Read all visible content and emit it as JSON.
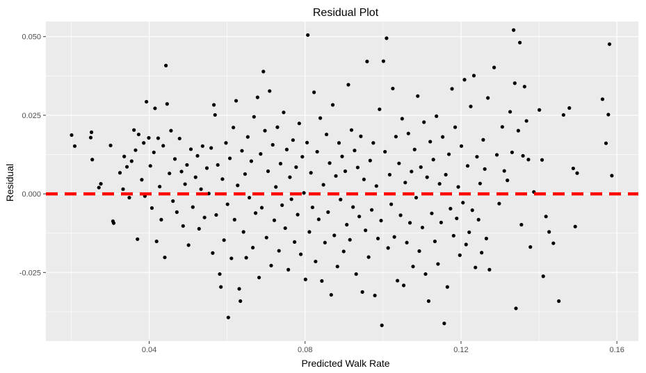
{
  "chart_data": {
    "type": "scatter",
    "title": "Residual Plot",
    "xlabel": "Predicted Walk Rate",
    "ylabel": "Residual",
    "xlim": [
      0.0135,
      0.1655
    ],
    "ylim": [
      -0.0468,
      0.0548
    ],
    "x_ticks": [
      {
        "value": 0.04,
        "label": "0.04"
      },
      {
        "value": 0.08,
        "label": "0.08"
      },
      {
        "value": 0.12,
        "label": "0.12"
      },
      {
        "value": 0.16,
        "label": "0.16"
      }
    ],
    "y_ticks": [
      {
        "value": -0.025,
        "label": "-0.025"
      },
      {
        "value": 0.0,
        "label": "0.000"
      },
      {
        "value": 0.025,
        "label": "0.025"
      },
      {
        "value": 0.05,
        "label": "0.050"
      }
    ],
    "grid": true,
    "reference_line": {
      "y": 0,
      "style": "dashed",
      "color": "#ff0000"
    },
    "colors": {
      "panel": "#ebebeb",
      "grid": "#ffffff",
      "points": "#000000"
    },
    "points": [
      {
        "x": 0.0201,
        "y": 0.0187
      },
      {
        "x": 0.0209,
        "y": 0.0152
      },
      {
        "x": 0.0252,
        "y": 0.0196
      },
      {
        "x": 0.025,
        "y": 0.0179
      },
      {
        "x": 0.0254,
        "y": 0.0109
      },
      {
        "x": 0.0271,
        "y": 0.002
      },
      {
        "x": 0.0276,
        "y": 0.0032
      },
      {
        "x": 0.0301,
        "y": 0.0154
      },
      {
        "x": 0.0307,
        "y": -0.0087
      },
      {
        "x": 0.0309,
        "y": -0.0093
      },
      {
        "x": 0.0325,
        "y": 0.0067
      },
      {
        "x": 0.0333,
        "y": 0.0015
      },
      {
        "x": 0.0336,
        "y": 0.0119
      },
      {
        "x": 0.0343,
        "y": 0.0086
      },
      {
        "x": 0.0349,
        "y": -0.0012
      },
      {
        "x": 0.0355,
        "y": 0.0104
      },
      {
        "x": 0.0361,
        "y": 0.0203
      },
      {
        "x": 0.0365,
        "y": 0.0139
      },
      {
        "x": 0.037,
        "y": -0.0144
      },
      {
        "x": 0.0373,
        "y": 0.0189
      },
      {
        "x": 0.0381,
        "y": 0.0045
      },
      {
        "x": 0.0386,
        "y": 0.0162
      },
      {
        "x": 0.0389,
        "y": -0.0007
      },
      {
        "x": 0.0393,
        "y": 0.0293
      },
      {
        "x": 0.0399,
        "y": 0.0178
      },
      {
        "x": 0.0403,
        "y": 0.0089
      },
      {
        "x": 0.0407,
        "y": -0.0045
      },
      {
        "x": 0.0412,
        "y": 0.0132
      },
      {
        "x": 0.0415,
        "y": 0.0272
      },
      {
        "x": 0.0419,
        "y": -0.0151
      },
      {
        "x": 0.0423,
        "y": 0.0177
      },
      {
        "x": 0.0427,
        "y": 0.0023
      },
      {
        "x": 0.0431,
        "y": -0.0082
      },
      {
        "x": 0.0436,
        "y": 0.0153
      },
      {
        "x": 0.044,
        "y": -0.0202
      },
      {
        "x": 0.0443,
        "y": 0.0408
      },
      {
        "x": 0.0446,
        "y": 0.0286
      },
      {
        "x": 0.0452,
        "y": 0.0065
      },
      {
        "x": 0.0456,
        "y": 0.0201
      },
      {
        "x": 0.0461,
        "y": -0.0023
      },
      {
        "x": 0.0466,
        "y": 0.0111
      },
      {
        "x": 0.0471,
        "y": -0.0058
      },
      {
        "x": 0.0478,
        "y": 0.0176
      },
      {
        "x": 0.0483,
        "y": 0.0071
      },
      {
        "x": 0.0487,
        "y": -0.0102
      },
      {
        "x": 0.0492,
        "y": 0.0031
      },
      {
        "x": 0.0497,
        "y": 0.0092
      },
      {
        "x": 0.0501,
        "y": -0.0163
      },
      {
        "x": 0.0507,
        "y": 0.0142
      },
      {
        "x": 0.0512,
        "y": -0.0042
      },
      {
        "x": 0.0519,
        "y": 0.0053
      },
      {
        "x": 0.0524,
        "y": 0.0121
      },
      {
        "x": 0.0528,
        "y": -0.0111
      },
      {
        "x": 0.0533,
        "y": 0.0015
      },
      {
        "x": 0.0537,
        "y": 0.0152
      },
      {
        "x": 0.0542,
        "y": -0.0075
      },
      {
        "x": 0.0548,
        "y": 0.0082
      },
      {
        "x": 0.0553,
        "y": 0.0001
      },
      {
        "x": 0.0559,
        "y": 0.0146
      },
      {
        "x": 0.0563,
        "y": -0.0188
      },
      {
        "x": 0.0566,
        "y": 0.0283
      },
      {
        "x": 0.0569,
        "y": 0.0251
      },
      {
        "x": 0.0572,
        "y": -0.0067
      },
      {
        "x": 0.0576,
        "y": 0.0092
      },
      {
        "x": 0.0581,
        "y": -0.0255
      },
      {
        "x": 0.0584,
        "y": -0.0296
      },
      {
        "x": 0.0588,
        "y": 0.0047
      },
      {
        "x": 0.0592,
        "y": -0.0147
      },
      {
        "x": 0.0597,
        "y": 0.0162
      },
      {
        "x": 0.0601,
        "y": -0.0033
      },
      {
        "x": 0.0603,
        "y": -0.0393
      },
      {
        "x": 0.0607,
        "y": 0.0113
      },
      {
        "x": 0.0611,
        "y": -0.0205
      },
      {
        "x": 0.0616,
        "y": 0.0211
      },
      {
        "x": 0.0619,
        "y": -0.0082
      },
      {
        "x": 0.0623,
        "y": 0.0296
      },
      {
        "x": 0.0627,
        "y": 0.0027
      },
      {
        "x": 0.0631,
        "y": -0.0302
      },
      {
        "x": 0.0634,
        "y": -0.0341
      },
      {
        "x": 0.0638,
        "y": 0.0137
      },
      {
        "x": 0.0642,
        "y": -0.0121
      },
      {
        "x": 0.0646,
        "y": 0.0063
      },
      {
        "x": 0.0649,
        "y": -0.0203
      },
      {
        "x": 0.0653,
        "y": 0.0181
      },
      {
        "x": 0.0657,
        "y": -0.0012
      },
      {
        "x": 0.0662,
        "y": 0.0104
      },
      {
        "x": 0.0666,
        "y": -0.0171
      },
      {
        "x": 0.0669,
        "y": 0.0245
      },
      {
        "x": 0.0673,
        "y": -0.0061
      },
      {
        "x": 0.0678,
        "y": 0.0307
      },
      {
        "x": 0.0682,
        "y": -0.0266
      },
      {
        "x": 0.0686,
        "y": 0.0127
      },
      {
        "x": 0.0689,
        "y": -0.0044
      },
      {
        "x": 0.0693,
        "y": 0.0389
      },
      {
        "x": 0.0697,
        "y": 0.0201
      },
      {
        "x": 0.0701,
        "y": -0.0139
      },
      {
        "x": 0.0705,
        "y": 0.0072
      },
      {
        "x": 0.0709,
        "y": 0.0327
      },
      {
        "x": 0.0713,
        "y": -0.0228
      },
      {
        "x": 0.0717,
        "y": 0.0156
      },
      {
        "x": 0.0721,
        "y": -0.0084
      },
      {
        "x": 0.0725,
        "y": 0.0022
      },
      {
        "x": 0.0729,
        "y": 0.0212
      },
      {
        "x": 0.0733,
        "y": -0.0181
      },
      {
        "x": 0.0737,
        "y": 0.0096
      },
      {
        "x": 0.0741,
        "y": -0.0036
      },
      {
        "x": 0.0745,
        "y": 0.0259
      },
      {
        "x": 0.0749,
        "y": -0.0109
      },
      {
        "x": 0.0753,
        "y": 0.0141
      },
      {
        "x": 0.0757,
        "y": -0.0241
      },
      {
        "x": 0.0761,
        "y": 0.0053
      },
      {
        "x": 0.0765,
        "y": -0.0017
      },
      {
        "x": 0.0769,
        "y": 0.0171
      },
      {
        "x": 0.0773,
        "y": -0.0153
      },
      {
        "x": 0.0777,
        "y": 0.0085
      },
      {
        "x": 0.0781,
        "y": -0.0066
      },
      {
        "x": 0.0785,
        "y": 0.0224
      },
      {
        "x": 0.0789,
        "y": -0.0192
      },
      {
        "x": 0.0793,
        "y": 0.0118
      },
      {
        "x": 0.0797,
        "y": 0.0003
      },
      {
        "x": 0.0801,
        "y": -0.0272
      },
      {
        "x": 0.0805,
        "y": 0.0163
      },
      {
        "x": 0.0807,
        "y": 0.0505
      },
      {
        "x": 0.0811,
        "y": -0.0121
      },
      {
        "x": 0.0815,
        "y": 0.0067
      },
      {
        "x": 0.0819,
        "y": -0.0043
      },
      {
        "x": 0.0823,
        "y": 0.0323
      },
      {
        "x": 0.0827,
        "y": -0.0215
      },
      {
        "x": 0.0831,
        "y": 0.0134
      },
      {
        "x": 0.0835,
        "y": -0.0081
      },
      {
        "x": 0.0839,
        "y": 0.0241
      },
      {
        "x": 0.0843,
        "y": -0.0277
      },
      {
        "x": 0.0847,
        "y": 0.0029
      },
      {
        "x": 0.0851,
        "y": -0.0155
      },
      {
        "x": 0.0855,
        "y": 0.0189
      },
      {
        "x": 0.0859,
        "y": -0.0058
      },
      {
        "x": 0.0863,
        "y": 0.0098
      },
      {
        "x": 0.0867,
        "y": -0.0321
      },
      {
        "x": 0.0871,
        "y": 0.0283
      },
      {
        "x": 0.0875,
        "y": -0.0132
      },
      {
        "x": 0.0879,
        "y": 0.0057
      },
      {
        "x": 0.0883,
        "y": -0.0231
      },
      {
        "x": 0.0887,
        "y": 0.0162
      },
      {
        "x": 0.0891,
        "y": -0.0018
      },
      {
        "x": 0.0895,
        "y": 0.0119
      },
      {
        "x": 0.0899,
        "y": -0.0183
      },
      {
        "x": 0.0903,
        "y": 0.0072
      },
      {
        "x": 0.0907,
        "y": -0.0098
      },
      {
        "x": 0.0911,
        "y": 0.0347
      },
      {
        "x": 0.0915,
        "y": -0.0146
      },
      {
        "x": 0.0919,
        "y": 0.0203
      },
      {
        "x": 0.0923,
        "y": -0.0042
      },
      {
        "x": 0.0927,
        "y": 0.0138
      },
      {
        "x": 0.0931,
        "y": -0.0255
      },
      {
        "x": 0.0935,
        "y": 0.0084
      },
      {
        "x": 0.0939,
        "y": -0.0072
      },
      {
        "x": 0.0943,
        "y": 0.0183
      },
      {
        "x": 0.0947,
        "y": -0.0312
      },
      {
        "x": 0.0951,
        "y": 0.0046
      },
      {
        "x": 0.0955,
        "y": -0.0116
      },
      {
        "x": 0.0959,
        "y": 0.0421
      },
      {
        "x": 0.0963,
        "y": -0.0201
      },
      {
        "x": 0.0967,
        "y": 0.0106
      },
      {
        "x": 0.0971,
        "y": -0.0051
      },
      {
        "x": 0.0975,
        "y": 0.0162
      },
      {
        "x": 0.0979,
        "y": -0.0323
      },
      {
        "x": 0.0983,
        "y": 0.0025
      },
      {
        "x": 0.0987,
        "y": -0.0142
      },
      {
        "x": 0.0991,
        "y": 0.0269
      },
      {
        "x": 0.0995,
        "y": -0.0085
      },
      {
        "x": 0.0997,
        "y": -0.0418
      },
      {
        "x": 0.1001,
        "y": 0.0422
      },
      {
        "x": 0.1005,
        "y": 0.0134
      },
      {
        "x": 0.1009,
        "y": 0.0495
      },
      {
        "x": 0.1013,
        "y": -0.0172
      },
      {
        "x": 0.1017,
        "y": 0.0061
      },
      {
        "x": 0.1021,
        "y": -0.0033
      },
      {
        "x": 0.1025,
        "y": 0.0335
      },
      {
        "x": 0.1029,
        "y": -0.0137
      },
      {
        "x": 0.1033,
        "y": 0.0182
      },
      {
        "x": 0.1037,
        "y": -0.0276
      },
      {
        "x": 0.1041,
        "y": 0.0097
      },
      {
        "x": 0.1045,
        "y": -0.0068
      },
      {
        "x": 0.1049,
        "y": 0.0239
      },
      {
        "x": 0.1053,
        "y": -0.0291
      },
      {
        "x": 0.1057,
        "y": 0.0036
      },
      {
        "x": 0.1061,
        "y": -0.0155
      },
      {
        "x": 0.1065,
        "y": 0.0192
      },
      {
        "x": 0.1069,
        "y": -0.0092
      },
      {
        "x": 0.1073,
        "y": 0.0071
      },
      {
        "x": 0.1077,
        "y": -0.0231
      },
      {
        "x": 0.1081,
        "y": 0.0141
      },
      {
        "x": 0.1085,
        "y": -0.0012
      },
      {
        "x": 0.1089,
        "y": 0.0311
      },
      {
        "x": 0.1093,
        "y": -0.0182
      },
      {
        "x": 0.1097,
        "y": 0.0085
      },
      {
        "x": 0.1101,
        "y": -0.0107
      },
      {
        "x": 0.1105,
        "y": 0.0228
      },
      {
        "x": 0.1109,
        "y": -0.0255
      },
      {
        "x": 0.1113,
        "y": 0.0053
      },
      {
        "x": 0.1117,
        "y": -0.0341
      },
      {
        "x": 0.1121,
        "y": 0.0166
      },
      {
        "x": 0.1125,
        "y": -0.0062
      },
      {
        "x": 0.1129,
        "y": 0.0109
      },
      {
        "x": 0.1133,
        "y": -0.0151
      },
      {
        "x": 0.1137,
        "y": 0.0247
      },
      {
        "x": 0.1141,
        "y": -0.0223
      },
      {
        "x": 0.1145,
        "y": 0.0032
      },
      {
        "x": 0.1149,
        "y": -0.0091
      },
      {
        "x": 0.1153,
        "y": 0.0181
      },
      {
        "x": 0.1157,
        "y": -0.0412
      },
      {
        "x": 0.1161,
        "y": 0.0061
      },
      {
        "x": 0.1165,
        "y": -0.0296
      },
      {
        "x": 0.1169,
        "y": 0.0126
      },
      {
        "x": 0.1173,
        "y": -0.0047
      },
      {
        "x": 0.1177,
        "y": 0.0334
      },
      {
        "x": 0.1181,
        "y": -0.0133
      },
      {
        "x": 0.1185,
        "y": 0.0212
      },
      {
        "x": 0.1189,
        "y": -0.0078
      },
      {
        "x": 0.1193,
        "y": 0.0022
      },
      {
        "x": 0.1197,
        "y": -0.0195
      },
      {
        "x": 0.1201,
        "y": 0.0152
      },
      {
        "x": 0.1205,
        "y": -0.0028
      },
      {
        "x": 0.1209,
        "y": 0.0363
      },
      {
        "x": 0.1213,
        "y": -0.0161
      },
      {
        "x": 0.1217,
        "y": 0.0089
      },
      {
        "x": 0.1221,
        "y": -0.0122
      },
      {
        "x": 0.1225,
        "y": 0.0278
      },
      {
        "x": 0.1229,
        "y": -0.0052
      },
      {
        "x": 0.1233,
        "y": 0.0376
      },
      {
        "x": 0.1237,
        "y": -0.0234
      },
      {
        "x": 0.1241,
        "y": 0.0118
      },
      {
        "x": 0.1245,
        "y": -0.0082
      },
      {
        "x": 0.1249,
        "y": 0.0033
      },
      {
        "x": 0.1253,
        "y": -0.0187
      },
      {
        "x": 0.1257,
        "y": 0.0172
      },
      {
        "x": 0.1261,
        "y": 0.0079
      },
      {
        "x": 0.1265,
        "y": -0.0142
      },
      {
        "x": 0.1269,
        "y": 0.0305
      },
      {
        "x": 0.1273,
        "y": -0.0241
      },
      {
        "x": 0.1285,
        "y": 0.0402
      },
      {
        "x": 0.1292,
        "y": 0.0124
      },
      {
        "x": 0.1298,
        "y": -0.0031
      },
      {
        "x": 0.1306,
        "y": 0.0213
      },
      {
        "x": 0.1311,
        "y": 0.0073
      },
      {
        "x": 0.1319,
        "y": 0.0043
      },
      {
        "x": 0.1326,
        "y": 0.0261
      },
      {
        "x": 0.1331,
        "y": 0.0132
      },
      {
        "x": 0.1335,
        "y": 0.0521
      },
      {
        "x": 0.1338,
        "y": 0.0352
      },
      {
        "x": 0.1341,
        "y": -0.0364
      },
      {
        "x": 0.1347,
        "y": 0.0201
      },
      {
        "x": 0.1351,
        "y": 0.0481
      },
      {
        "x": 0.1355,
        "y": -0.0098
      },
      {
        "x": 0.1359,
        "y": 0.0121
      },
      {
        "x": 0.1363,
        "y": 0.0341
      },
      {
        "x": 0.1368,
        "y": 0.0232
      },
      {
        "x": 0.1373,
        "y": 0.0109
      },
      {
        "x": 0.1378,
        "y": -0.0169
      },
      {
        "x": 0.1387,
        "y": 0.0006
      },
      {
        "x": 0.1401,
        "y": 0.0267
      },
      {
        "x": 0.1408,
        "y": 0.0108
      },
      {
        "x": 0.1411,
        "y": -0.0262
      },
      {
        "x": 0.1418,
        "y": -0.0072
      },
      {
        "x": 0.1426,
        "y": -0.0121
      },
      {
        "x": 0.1437,
        "y": -0.0157
      },
      {
        "x": 0.1451,
        "y": -0.0341
      },
      {
        "x": 0.1463,
        "y": 0.0251
      },
      {
        "x": 0.1478,
        "y": 0.0273
      },
      {
        "x": 0.1488,
        "y": 0.0081
      },
      {
        "x": 0.1493,
        "y": -0.0104
      },
      {
        "x": 0.1498,
        "y": 0.0066
      },
      {
        "x": 0.1563,
        "y": 0.0301
      },
      {
        "x": 0.1572,
        "y": 0.0161
      },
      {
        "x": 0.1578,
        "y": 0.0252
      },
      {
        "x": 0.1581,
        "y": 0.0476
      },
      {
        "x": 0.1587,
        "y": 0.0058
      }
    ]
  }
}
